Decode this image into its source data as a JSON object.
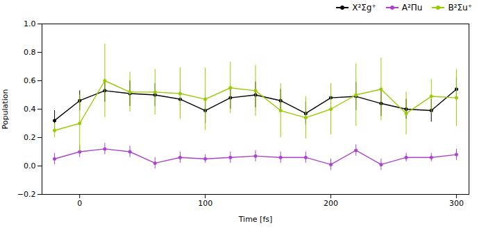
{
  "chart_data": {
    "type": "line",
    "xlabel": "Time [fs]",
    "ylabel": "Population",
    "x": [
      -20,
      0,
      20,
      40,
      60,
      80,
      100,
      120,
      140,
      160,
      180,
      200,
      220,
      240,
      260,
      280,
      300
    ],
    "series": [
      {
        "name": "X²Σg⁺",
        "color": "#000000",
        "marker": "o",
        "line_style": "solid",
        "values": [
          0.32,
          0.46,
          0.53,
          0.51,
          0.5,
          0.47,
          0.39,
          0.48,
          0.5,
          0.46,
          0.37,
          0.48,
          0.49,
          0.44,
          0.4,
          0.39,
          0.54
        ],
        "errors": [
          0.07,
          0.07,
          0.08,
          0.09,
          0.08,
          0.08,
          0.09,
          0.08,
          0.09,
          0.08,
          0.08,
          0.09,
          0.1,
          0.09,
          0.07,
          0.08,
          0.08
        ]
      },
      {
        "name": "A²Πu",
        "color": "#aa44cc",
        "marker": "o",
        "line_style": "solid",
        "values": [
          0.05,
          0.1,
          0.12,
          0.1,
          0.02,
          0.06,
          0.05,
          0.06,
          0.07,
          0.06,
          0.06,
          0.01,
          0.11,
          0.01,
          0.06,
          0.06,
          0.08
        ],
        "errors": [
          0.04,
          0.04,
          0.04,
          0.04,
          0.04,
          0.04,
          0.03,
          0.04,
          0.04,
          0.04,
          0.04,
          0.04,
          0.04,
          0.04,
          0.03,
          0.03,
          0.04
        ]
      },
      {
        "name": "B²Σu⁺",
        "color": "#99cc00",
        "marker": "o",
        "line_style": "solid",
        "values": [
          0.25,
          0.3,
          0.6,
          0.52,
          0.52,
          0.51,
          0.47,
          0.55,
          0.53,
          0.39,
          0.34,
          0.4,
          0.5,
          0.54,
          0.37,
          0.49,
          0.48
        ],
        "errors": [
          0.05,
          0.2,
          0.26,
          0.14,
          0.16,
          0.18,
          0.22,
          0.18,
          0.18,
          0.19,
          0.15,
          0.18,
          0.22,
          0.22,
          0.15,
          0.12,
          0.2
        ]
      }
    ],
    "xlim": [
      -30,
      310
    ],
    "xticks": [
      0,
      100,
      200,
      300
    ],
    "ylim": [
      -0.2,
      1.0
    ],
    "yticks": [
      {
        "value": -0.2,
        "label": "−0.2"
      },
      {
        "value": 0,
        "label": "0.0"
      },
      0.2,
      0.4,
      0.6,
      0.8,
      {
        "value": 1.0,
        "label": "1.0"
      }
    ],
    "legend": "upper right",
    "grid": false
  }
}
